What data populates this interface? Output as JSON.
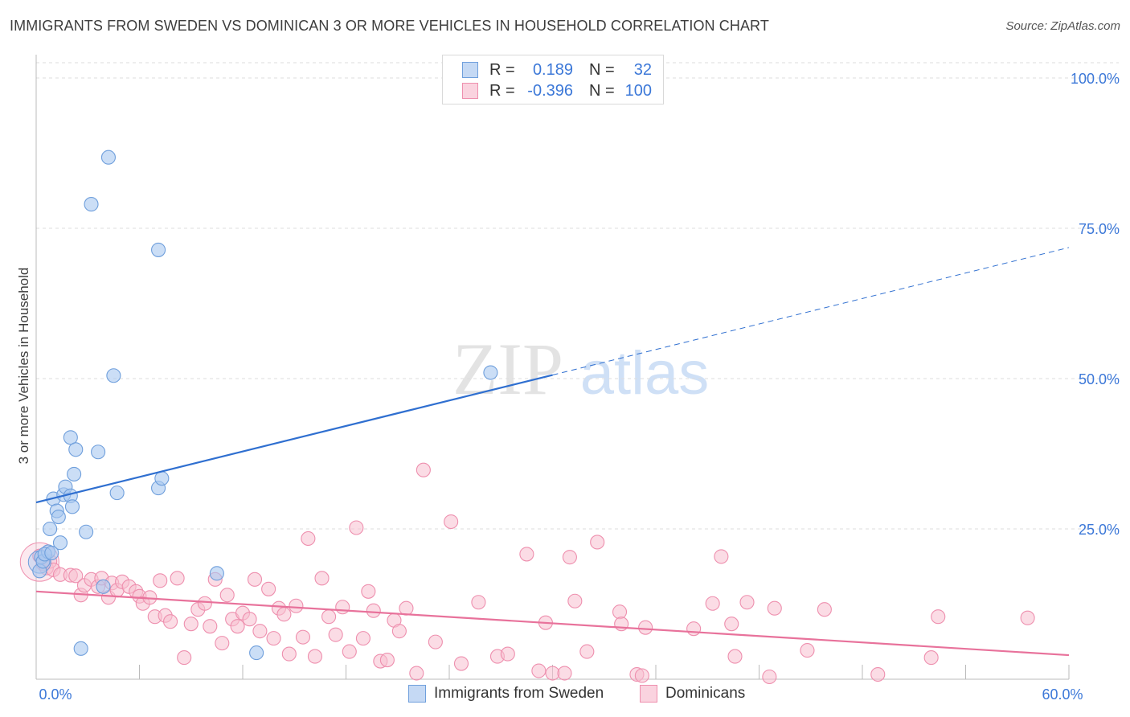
{
  "header": {
    "title": "IMMIGRANTS FROM SWEDEN VS DOMINICAN 3 OR MORE VEHICLES IN HOUSEHOLD CORRELATION CHART",
    "source": "Source: ZipAtlas.com"
  },
  "colors": {
    "blue_fill": "#a9c8f0",
    "blue_stroke": "#6f9fdc",
    "blue_line": "#2f6fd0",
    "pink_fill": "#f7bfd0",
    "pink_stroke": "#ee8fae",
    "pink_line": "#e8729b",
    "axis_text": "#3c78d8"
  },
  "legend_top": {
    "rows": [
      {
        "r_label": "R =",
        "r_value": "0.189",
        "n_label": "N =",
        "n_value": "32"
      },
      {
        "r_label": "R =",
        "r_value": "-0.396",
        "n_label": "N =",
        "n_value": "100"
      }
    ]
  },
  "legend_bottom": {
    "series": [
      "Immigrants from Sweden",
      "Dominicans"
    ]
  },
  "watermark": {
    "part1": "ZIP",
    "part2": "atlas"
  },
  "chart_data": {
    "type": "scatter",
    "title": "IMMIGRANTS FROM SWEDEN VS DOMINICAN 3 OR MORE VEHICLES IN HOUSEHOLD CORRELATION CHART",
    "xlabel": "",
    "ylabel": "3 or more Vehicles in Household",
    "xlim": [
      0,
      60
    ],
    "ylim": [
      0,
      100
    ],
    "x_tick_labels": [
      {
        "value": 0,
        "label": "0.0%"
      },
      {
        "value": 60,
        "label": "60.0%"
      }
    ],
    "y_tick_labels": [
      {
        "value": 25,
        "label": "25.0%"
      },
      {
        "value": 50,
        "label": "50.0%"
      },
      {
        "value": 75,
        "label": "75.0%"
      },
      {
        "value": 100,
        "label": "100.0%"
      }
    ],
    "series": [
      {
        "name": "Immigrants from Sweden",
        "R": 0.189,
        "N": 32,
        "trend": {
          "x0": 0,
          "y0": 29.4,
          "x1": 60,
          "y1": 71.8,
          "solid_until_x": 30
        },
        "points": [
          [
            0.2,
            18.0
          ],
          [
            0.3,
            20.3
          ],
          [
            0.4,
            19.6
          ],
          [
            0.7,
            21.2
          ],
          [
            0.8,
            25.0
          ],
          [
            1.0,
            30.0
          ],
          [
            1.2,
            28.0
          ],
          [
            1.3,
            27.0
          ],
          [
            1.4,
            22.7
          ],
          [
            1.6,
            30.7
          ],
          [
            1.7,
            32.0
          ],
          [
            2.0,
            30.5
          ],
          [
            2.1,
            28.7
          ],
          [
            2.0,
            40.2
          ],
          [
            2.2,
            34.1
          ],
          [
            2.3,
            38.2
          ],
          [
            2.6,
            5.1
          ],
          [
            2.9,
            24.5
          ],
          [
            3.2,
            79.0
          ],
          [
            3.6,
            37.8
          ],
          [
            3.9,
            15.4
          ],
          [
            4.2,
            86.8
          ],
          [
            4.5,
            50.5
          ],
          [
            4.7,
            31.0
          ],
          [
            7.1,
            71.4
          ],
          [
            7.1,
            31.8
          ],
          [
            7.3,
            33.4
          ],
          [
            10.5,
            17.6
          ],
          [
            12.8,
            4.4
          ],
          [
            26.4,
            51.0
          ],
          [
            0.5,
            20.8
          ],
          [
            0.9,
            21.0
          ]
        ]
      },
      {
        "name": "Dominicans",
        "R": -0.396,
        "N": 100,
        "trend": {
          "x0": 0,
          "y0": 14.6,
          "x1": 60,
          "y1": 4.0
        },
        "points": [
          [
            0.2,
            20.5
          ],
          [
            0.4,
            19.2
          ],
          [
            0.6,
            18.5
          ],
          [
            0.8,
            19.6
          ],
          [
            1.0,
            18.2
          ],
          [
            1.4,
            17.4
          ],
          [
            2.0,
            17.3
          ],
          [
            2.3,
            17.2
          ],
          [
            2.6,
            14.0
          ],
          [
            2.8,
            15.6
          ],
          [
            3.2,
            16.6
          ],
          [
            3.6,
            15.4
          ],
          [
            3.8,
            16.8
          ],
          [
            4.2,
            13.6
          ],
          [
            4.4,
            16.0
          ],
          [
            4.7,
            14.8
          ],
          [
            5.0,
            16.2
          ],
          [
            5.4,
            15.4
          ],
          [
            5.8,
            14.6
          ],
          [
            6.0,
            13.8
          ],
          [
            6.2,
            12.6
          ],
          [
            6.6,
            13.6
          ],
          [
            6.9,
            10.4
          ],
          [
            7.2,
            16.4
          ],
          [
            7.5,
            10.6
          ],
          [
            7.8,
            9.6
          ],
          [
            8.2,
            16.8
          ],
          [
            8.6,
            3.6
          ],
          [
            9.0,
            9.2
          ],
          [
            9.4,
            11.6
          ],
          [
            9.8,
            12.6
          ],
          [
            10.1,
            8.8
          ],
          [
            10.4,
            16.6
          ],
          [
            10.8,
            6.0
          ],
          [
            11.1,
            14.0
          ],
          [
            11.4,
            10.0
          ],
          [
            11.7,
            8.8
          ],
          [
            12.0,
            11.0
          ],
          [
            12.4,
            10.0
          ],
          [
            12.7,
            16.6
          ],
          [
            13.0,
            8.0
          ],
          [
            13.5,
            15.0
          ],
          [
            13.8,
            6.8
          ],
          [
            14.1,
            11.8
          ],
          [
            14.4,
            10.8
          ],
          [
            14.7,
            4.2
          ],
          [
            15.1,
            12.2
          ],
          [
            15.5,
            7.0
          ],
          [
            15.8,
            23.4
          ],
          [
            16.2,
            3.8
          ],
          [
            16.6,
            16.8
          ],
          [
            17.0,
            10.4
          ],
          [
            17.4,
            7.4
          ],
          [
            17.8,
            12.0
          ],
          [
            18.2,
            4.6
          ],
          [
            18.6,
            25.2
          ],
          [
            19.0,
            6.8
          ],
          [
            19.3,
            14.6
          ],
          [
            19.6,
            11.4
          ],
          [
            20.0,
            3.0
          ],
          [
            20.4,
            3.2
          ],
          [
            20.8,
            9.8
          ],
          [
            21.1,
            8.0
          ],
          [
            21.5,
            11.8
          ],
          [
            22.1,
            1.0
          ],
          [
            22.5,
            34.8
          ],
          [
            23.2,
            6.2
          ],
          [
            24.1,
            26.2
          ],
          [
            24.7,
            2.6
          ],
          [
            25.7,
            12.8
          ],
          [
            26.8,
            3.8
          ],
          [
            27.4,
            4.2
          ],
          [
            28.5,
            20.8
          ],
          [
            29.2,
            1.4
          ],
          [
            29.6,
            9.4
          ],
          [
            30.0,
            1.0
          ],
          [
            30.7,
            1.0
          ],
          [
            31.0,
            20.3
          ],
          [
            31.3,
            13.0
          ],
          [
            32.0,
            4.6
          ],
          [
            32.6,
            22.8
          ],
          [
            33.9,
            11.2
          ],
          [
            34.0,
            9.2
          ],
          [
            34.9,
            0.8
          ],
          [
            35.2,
            0.6
          ],
          [
            35.4,
            8.6
          ],
          [
            38.2,
            8.4
          ],
          [
            39.3,
            12.6
          ],
          [
            39.8,
            20.4
          ],
          [
            40.4,
            9.2
          ],
          [
            40.6,
            3.8
          ],
          [
            41.3,
            12.8
          ],
          [
            42.6,
            0.4
          ],
          [
            42.9,
            11.8
          ],
          [
            44.8,
            4.8
          ],
          [
            45.8,
            11.6
          ],
          [
            48.9,
            0.8
          ],
          [
            52.0,
            3.6
          ],
          [
            52.4,
            10.4
          ],
          [
            57.6,
            10.2
          ]
        ]
      }
    ]
  }
}
